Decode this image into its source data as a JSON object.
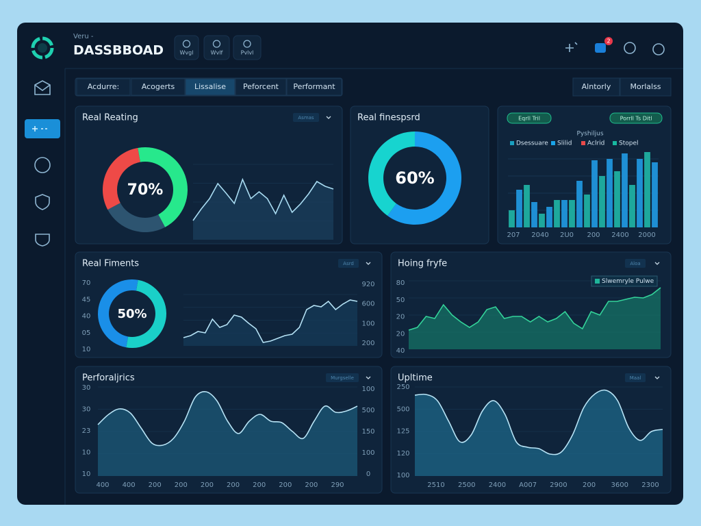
{
  "header": {
    "subtitle": "Veru -",
    "title": "DASSBBOAD",
    "buttons": [
      "Wvgl",
      "Wvlf",
      "Pvlvl"
    ],
    "notifications": 2
  },
  "tabs": {
    "items": [
      "Acdurre:",
      "Acogerts",
      "Lissalise",
      "Peforcent",
      "Performant"
    ],
    "active": 2,
    "right": [
      "Alntorly",
      "Morlalss"
    ]
  },
  "panels": [
    {
      "title": "Real Reating",
      "dropdown": "Asmas",
      "charts": [
        {
          "type": "donut",
          "values": [
            45,
            25,
            30
          ],
          "colors": [
            "#27e88c",
            "#2d5470",
            "#ee4a47"
          ],
          "value": 70,
          "value_label": "70%"
        },
        {
          "type": "line",
          "values": [
            28,
            45,
            60,
            82,
            68,
            53,
            88,
            60,
            70,
            60,
            38,
            65,
            40,
            52,
            67,
            85,
            78,
            74
          ],
          "ylim": [
            0,
            110
          ],
          "color": "#a9dcf2",
          "fill": "#1b3d5c",
          "smooth": false
        }
      ]
    },
    {
      "title": "Real finespsrd",
      "charts": [
        {
          "type": "donut",
          "values": [
            60,
            40
          ],
          "colors": [
            "#1c9ff0",
            "#17d4cf"
          ],
          "value": 60,
          "value_label": "60%"
        }
      ]
    },
    {
      "buttons": [
        "Eqrll Tril",
        "Porrll Ts Ditl"
      ],
      "subtitle": "Pyshiljus",
      "charts": [
        {
          "type": "bar",
          "values": [
            25,
            55,
            62,
            37,
            20,
            30,
            40,
            40,
            40,
            68,
            48,
            98,
            75,
            100,
            82,
            108,
            62,
            100,
            110,
            95
          ],
          "colors": [
            "#1ea89c",
            "#1f8fd4"
          ],
          "ylim": [
            0,
            120
          ],
          "x_labels": [
            "207",
            "2040",
            "2U0",
            "200",
            "2400",
            "2000"
          ],
          "legend": [
            {
              "name": "Dsessuare",
              "color": "#1a9fc0"
            },
            {
              "name": "Slilid",
              "color": "#1aa3e8"
            },
            {
              "name": "Aclrid",
              "color": "#e84a4a"
            },
            {
              "name": "Stopel",
              "color": "#18b8a0"
            }
          ]
        }
      ]
    },
    {
      "title": "Real Fiments",
      "dropdown": "Asrd",
      "charts": [
        {
          "type": "donut",
          "values": [
            50,
            50
          ],
          "colors": [
            "#1ad0c8",
            "#1a8fe8"
          ],
          "value": 50,
          "value_label": "50%"
        },
        {
          "type": "line",
          "values": [
            12,
            15,
            21,
            19,
            39,
            27,
            31,
            45,
            42,
            33,
            25,
            5,
            7,
            11,
            15,
            17,
            27,
            53,
            59,
            57,
            65,
            53,
            61,
            67,
            65
          ],
          "ylim": [
            0,
            75
          ],
          "color": "#b5e2f5",
          "fill": "#163a58",
          "smooth": false,
          "y_labels": [
            "70",
            "45",
            "40",
            "05",
            "10"
          ],
          "y2_labels": [
            "920",
            "600",
            "100",
            "200"
          ]
        }
      ]
    },
    {
      "title": "Hoing fryfe",
      "dropdown": "Aloa",
      "charts": [
        {
          "type": "area",
          "values": [
            28,
            32,
            48,
            45,
            65,
            50,
            40,
            32,
            40,
            58,
            62,
            45,
            48,
            48,
            40,
            48,
            40,
            45,
            55,
            38,
            30,
            55,
            50,
            70,
            70,
            73,
            76,
            75,
            80,
            90
          ],
          "ylim": [
            0,
            100
          ],
          "color": "#34d49a",
          "fill": "#167265",
          "smooth": false,
          "y_labels": [
            "80",
            "50",
            "20",
            "20",
            "40"
          ],
          "legend": [
            {
              "name": "Slwemryle Pulwe",
              "color": "#1fb59a"
            }
          ]
        }
      ]
    },
    {
      "title": "Perforaljrics",
      "dropdown": "Murgselle",
      "charts": [
        {
          "type": "area",
          "values": [
            75,
            90,
            98,
            92,
            70,
            48,
            45,
            55,
            80,
            115,
            123,
            110,
            80,
            62,
            80,
            90,
            80,
            78,
            65,
            55,
            80,
            102,
            93,
            95,
            102
          ],
          "ylim": [
            0,
            130
          ],
          "color": "#b8e4f6",
          "fill": "#1c5878",
          "smooth": true,
          "y_labels": [
            "30",
            "30",
            "23",
            "10",
            "10"
          ],
          "y2_labels": [
            "100",
            "500",
            "150",
            "100",
            "0"
          ],
          "x_labels": [
            "400",
            "400",
            "200",
            "200",
            "200",
            "200",
            "200",
            "200",
            "200",
            "290"
          ]
        }
      ]
    },
    {
      "title": "Upltime",
      "dropdown": "Maal",
      "charts": [
        {
          "type": "area",
          "values": [
            118,
            119,
            110,
            80,
            50,
            60,
            95,
            110,
            90,
            50,
            42,
            40,
            32,
            35,
            60,
            100,
            120,
            125,
            110,
            70,
            52,
            65,
            68
          ],
          "ylim": [
            0,
            130
          ],
          "color": "#b8e4f6",
          "fill": "#1d6688",
          "smooth": true,
          "y_labels": [
            "250",
            "500",
            "125",
            "120",
            "100"
          ],
          "x_labels": [
            "2510",
            "2500",
            "2400",
            "A007",
            "2900",
            "200",
            "3600",
            "2300"
          ]
        }
      ]
    }
  ]
}
